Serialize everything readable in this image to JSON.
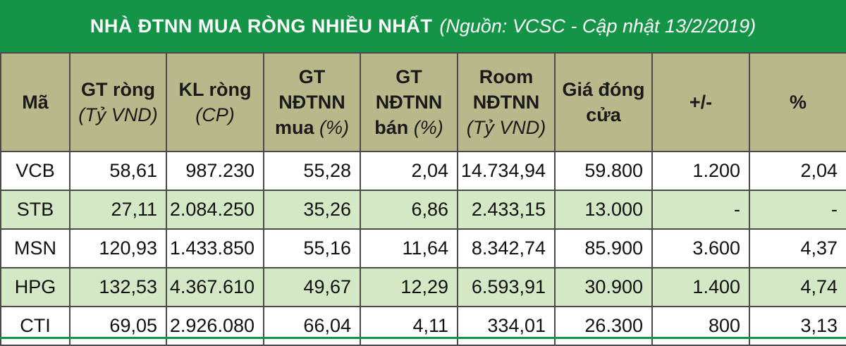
{
  "title": {
    "main": "NHÀ ĐTNN MUA RÒNG NHIỀU NHẤT",
    "source": "(Nguồn: VCSC - Cập nhật 13/2/2019)"
  },
  "headers": [
    {
      "lines": [
        "Mã"
      ],
      "sub": ""
    },
    {
      "lines": [
        "GT ròng"
      ],
      "sub": "(Tỷ VND)"
    },
    {
      "lines": [
        "KL ròng"
      ],
      "sub": "(CP)"
    },
    {
      "lines": [
        "GT NĐTNN"
      ],
      "sub": "",
      "last": "mua",
      "last_sub": "(%)"
    },
    {
      "lines": [
        "GT NĐTNN"
      ],
      "sub": "",
      "last": "bán",
      "last_sub": "(%)"
    },
    {
      "lines": [
        "Room",
        "NĐTNN"
      ],
      "sub": "(Tỷ VND)"
    },
    {
      "lines": [
        "Giá đóng",
        "cửa"
      ],
      "sub": ""
    },
    {
      "lines": [
        "+/-"
      ],
      "sub": ""
    },
    {
      "lines": [
        "%"
      ],
      "sub": ""
    }
  ],
  "rows": [
    {
      "code": "VCB",
      "gt_rong": "58,61",
      "kl_rong": "987.230",
      "gt_mua": "55,28",
      "gt_ban": "2,04",
      "room": "14.734,94",
      "gia": "59.800",
      "change": "1.200",
      "pct": "2,04"
    },
    {
      "code": "STB",
      "gt_rong": "27,11",
      "kl_rong": "2.084.250",
      "gt_mua": "35,26",
      "gt_ban": "6,86",
      "room": "2.433,15",
      "gia": "13.000",
      "change": "-",
      "pct": "-"
    },
    {
      "code": "MSN",
      "gt_rong": "120,93",
      "kl_rong": "1.433.850",
      "gt_mua": "55,16",
      "gt_ban": "11,64",
      "room": "8.342,74",
      "gia": "85.900",
      "change": "3.600",
      "pct": "4,37"
    },
    {
      "code": "HPG",
      "gt_rong": "132,53",
      "kl_rong": "4.367.610",
      "gt_mua": "49,67",
      "gt_ban": "12,29",
      "room": "6.593,91",
      "gia": "30.900",
      "change": "1.400",
      "pct": "4,74"
    },
    {
      "code": "CTI",
      "gt_rong": "69,05",
      "kl_rong": "2.926.080",
      "gt_mua": "66,04",
      "gt_ban": "4,11",
      "room": "334,01",
      "gia": "26.300",
      "change": "800",
      "pct": "3,13"
    }
  ],
  "colors": {
    "title_bg": "#139447",
    "header_bg": "#b9b88a",
    "alt_row_bg": "#d4e8c6"
  }
}
